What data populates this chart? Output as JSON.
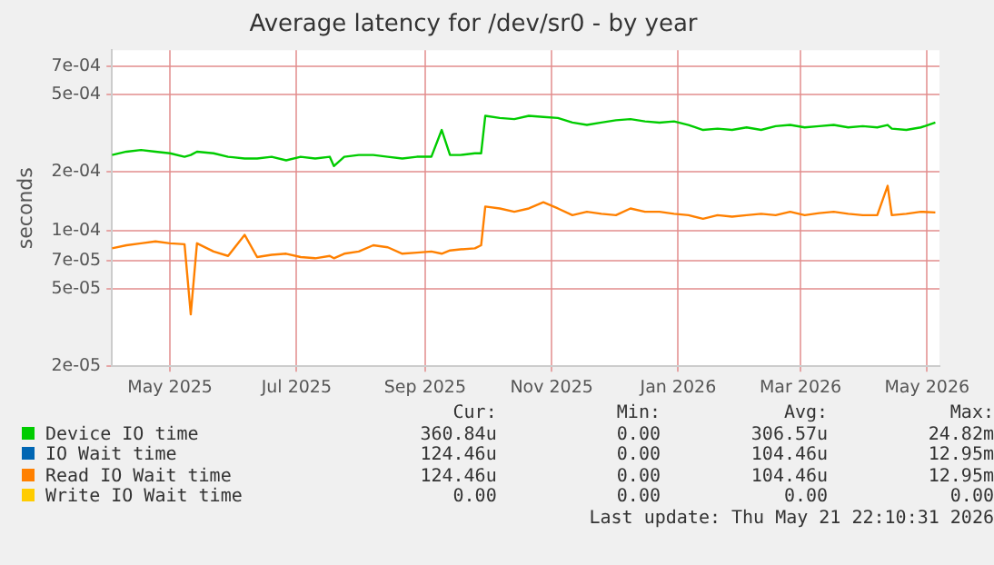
{
  "chart_data": {
    "type": "line",
    "title": "Average latency for /dev/sr0 - by year",
    "ylabel": "seconds",
    "log": "y",
    "grid": true,
    "legend": "bottom",
    "x": [
      "2025-04-18",
      "2025-04-25",
      "2025-05-02",
      "2025-05-09",
      "2025-05-16",
      "2025-05-23",
      "2025-05-26",
      "2025-05-29",
      "2025-06-06",
      "2025-06-13",
      "2025-06-21",
      "2025-06-27",
      "2025-07-04",
      "2025-07-11",
      "2025-07-18",
      "2025-07-25",
      "2025-08-01",
      "2025-08-03",
      "2025-08-08",
      "2025-08-15",
      "2025-08-22",
      "2025-08-29",
      "2025-09-05",
      "2025-09-12",
      "2025-09-19",
      "2025-09-24",
      "2025-09-28",
      "2025-10-03",
      "2025-10-10",
      "2025-10-13",
      "2025-10-15",
      "2025-10-22",
      "2025-10-29",
      "2025-11-05",
      "2025-11-12",
      "2025-11-19",
      "2025-11-26",
      "2025-12-03",
      "2025-12-10",
      "2025-12-17",
      "2025-12-24",
      "2025-12-31",
      "2026-01-07",
      "2026-01-14",
      "2026-01-21",
      "2026-01-28",
      "2026-02-04",
      "2026-02-11",
      "2026-02-18",
      "2026-02-25",
      "2026-03-04",
      "2026-03-11",
      "2026-03-18",
      "2026-03-25",
      "2026-04-01",
      "2026-04-08",
      "2026-04-15",
      "2026-04-22",
      "2026-04-27",
      "2026-04-29",
      "2026-05-06",
      "2026-05-13",
      "2026-05-20"
    ],
    "xlim": [
      "2025-04-18",
      "2026-05-22"
    ],
    "xticks": [
      {
        "value": "2025-05-16",
        "label": "May 2025"
      },
      {
        "value": "2025-07-16",
        "label": "Jul 2025"
      },
      {
        "value": "2025-09-16",
        "label": "Sep 2025"
      },
      {
        "value": "2025-11-16",
        "label": "Nov 2025"
      },
      {
        "value": "2026-01-16",
        "label": "Jan 2026"
      },
      {
        "value": "2026-03-16",
        "label": "Mar 2026"
      },
      {
        "value": "2026-05-16",
        "label": "May 2026"
      }
    ],
    "ylim": [
      2e-05,
      0.00085
    ],
    "yticks": [
      {
        "value": 2e-05,
        "label": "2e-05"
      },
      {
        "value": 5e-05,
        "label": "5e-05"
      },
      {
        "value": 7e-05,
        "label": "7e-05"
      },
      {
        "value": 0.0001,
        "label": "1e-04"
      },
      {
        "value": 0.0002,
        "label": "2e-04"
      },
      {
        "value": 0.0005,
        "label": "5e-04"
      },
      {
        "value": 0.0007,
        "label": "7e-04"
      }
    ],
    "series": [
      {
        "name": "Device IO time",
        "color": "#00cc00",
        "values": [
          0.000245,
          0.000255,
          0.00026,
          0.000255,
          0.00025,
          0.00024,
          0.000245,
          0.000255,
          0.00025,
          0.00024,
          0.000235,
          0.000235,
          0.00024,
          0.00023,
          0.00024,
          0.000235,
          0.00024,
          0.000215,
          0.00024,
          0.000245,
          0.000245,
          0.00024,
          0.000235,
          0.00024,
          0.00024,
          0.00033,
          0.000245,
          0.000245,
          0.00025,
          0.00025,
          0.00039,
          0.00038,
          0.000375,
          0.00039,
          0.000385,
          0.00038,
          0.00036,
          0.00035,
          0.00036,
          0.00037,
          0.000375,
          0.000365,
          0.00036,
          0.000365,
          0.00035,
          0.00033,
          0.000335,
          0.00033,
          0.00034,
          0.00033,
          0.000345,
          0.00035,
          0.00034,
          0.000345,
          0.00035,
          0.00034,
          0.000345,
          0.00034,
          0.00035,
          0.000335,
          0.00033,
          0.00034,
          0.00036
        ]
      },
      {
        "name": "IO Wait time",
        "color": "#0066b3",
        "values": [
          null,
          null,
          null,
          null,
          null,
          null,
          null,
          null,
          null,
          null,
          null,
          null,
          null,
          null,
          null,
          null,
          null,
          null,
          null,
          null,
          null,
          null,
          null,
          null,
          null,
          null,
          null,
          null,
          null,
          null,
          null,
          null,
          null,
          null,
          null,
          null,
          null,
          null,
          null,
          null,
          null,
          null,
          null,
          null,
          null,
          null,
          null,
          null,
          null,
          null,
          null,
          null,
          null,
          null,
          null,
          null,
          null,
          null,
          null,
          null,
          null,
          null,
          null
        ]
      },
      {
        "name": "Read IO Wait time",
        "color": "#ff8000",
        "values": [
          8.1e-05,
          8.4e-05,
          8.6e-05,
          8.8e-05,
          8.6e-05,
          8.5e-05,
          3.7e-05,
          8.6e-05,
          7.8e-05,
          7.4e-05,
          9.5e-05,
          7.3e-05,
          7.5e-05,
          7.6e-05,
          7.3e-05,
          7.2e-05,
          7.4e-05,
          7.2e-05,
          7.6e-05,
          7.8e-05,
          8.4e-05,
          8.2e-05,
          7.6e-05,
          7.7e-05,
          7.8e-05,
          7.6e-05,
          7.9e-05,
          8e-05,
          8.1e-05,
          8.4e-05,
          0.000133,
          0.00013,
          0.000125,
          0.00013,
          0.00014,
          0.00013,
          0.00012,
          0.000125,
          0.000122,
          0.00012,
          0.00013,
          0.000125,
          0.000125,
          0.000122,
          0.00012,
          0.000115,
          0.00012,
          0.000118,
          0.00012,
          0.000122,
          0.00012,
          0.000125,
          0.00012,
          0.000123,
          0.000125,
          0.000122,
          0.00012,
          0.00012,
          0.00017,
          0.00012,
          0.000122,
          0.000125,
          0.000124
        ]
      },
      {
        "name": "Write IO Wait time",
        "color": "#ffcc00",
        "values": [
          null,
          null,
          null,
          null,
          null,
          null,
          null,
          null,
          null,
          null,
          null,
          null,
          null,
          null,
          null,
          null,
          null,
          null,
          null,
          null,
          null,
          null,
          null,
          null,
          null,
          null,
          null,
          null,
          null,
          null,
          null,
          null,
          null,
          null,
          null,
          null,
          null,
          null,
          null,
          null,
          null,
          null,
          null,
          null,
          null,
          null,
          null,
          null,
          null,
          null,
          null,
          null,
          null,
          null,
          null,
          null,
          null,
          null,
          null,
          null,
          null,
          null,
          null
        ]
      }
    ],
    "annotations": [
      "Cur:",
      "Min:",
      "Avg:",
      "Max:",
      "360.84u",
      "0.00",
      "306.57u",
      "24.82m",
      "124.46u",
      "0.00",
      "104.46u",
      "12.95m",
      "124.46u",
      "0.00",
      "104.46u",
      "12.95m",
      "0.00",
      "0.00",
      "0.00",
      "0.00",
      "Last update: Thu May 21 22:10:31 2026"
    ]
  }
}
